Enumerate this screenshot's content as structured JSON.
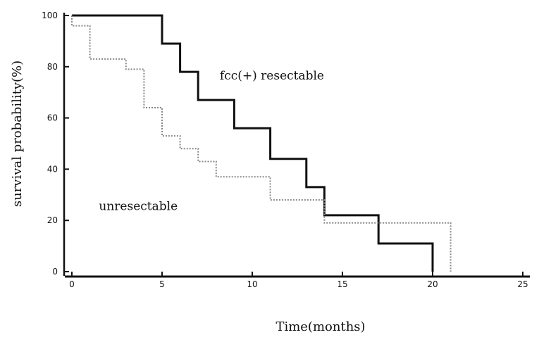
{
  "chart_data": {
    "type": "line",
    "xlabel": "Time(months)",
    "ylabel": "survival probability(%)",
    "xlim": [
      0,
      25
    ],
    "ylim": [
      0,
      100
    ],
    "x_ticks": [
      0,
      5,
      10,
      15,
      20,
      25
    ],
    "y_ticks": [
      0,
      20,
      40,
      60,
      80,
      100
    ],
    "grid": false,
    "series": [
      {
        "name": "fcc(+) resectable",
        "style": "solid",
        "color": "#111111",
        "points": [
          [
            0,
            100
          ],
          [
            5,
            100
          ],
          [
            5,
            89
          ],
          [
            6,
            89
          ],
          [
            6,
            78
          ],
          [
            7,
            78
          ],
          [
            7,
            67
          ],
          [
            9,
            67
          ],
          [
            9,
            56
          ],
          [
            11,
            56
          ],
          [
            11,
            44
          ],
          [
            13,
            44
          ],
          [
            13,
            33
          ],
          [
            14,
            33
          ],
          [
            14,
            22
          ],
          [
            17,
            22
          ],
          [
            17,
            11
          ],
          [
            20,
            11
          ],
          [
            20,
            0
          ]
        ]
      },
      {
        "name": "unresectable",
        "style": "dotted",
        "color": "#888888",
        "points": [
          [
            0,
            100
          ],
          [
            0,
            96
          ],
          [
            1,
            96
          ],
          [
            1,
            83
          ],
          [
            3,
            83
          ],
          [
            3,
            79
          ],
          [
            4,
            79
          ],
          [
            4,
            64
          ],
          [
            5,
            64
          ],
          [
            5,
            53
          ],
          [
            6,
            53
          ],
          [
            6,
            48
          ],
          [
            7,
            48
          ],
          [
            7,
            43
          ],
          [
            8,
            43
          ],
          [
            8,
            37
          ],
          [
            11,
            37
          ],
          [
            11,
            28
          ],
          [
            14,
            28
          ],
          [
            14,
            19
          ],
          [
            21,
            19
          ],
          [
            21,
            0
          ]
        ]
      }
    ],
    "annotations": [
      {
        "text": "fcc(+) resectable",
        "x": 8.2,
        "y": 75
      },
      {
        "text": "unresectable",
        "x": 1.5,
        "y": 24
      }
    ]
  }
}
